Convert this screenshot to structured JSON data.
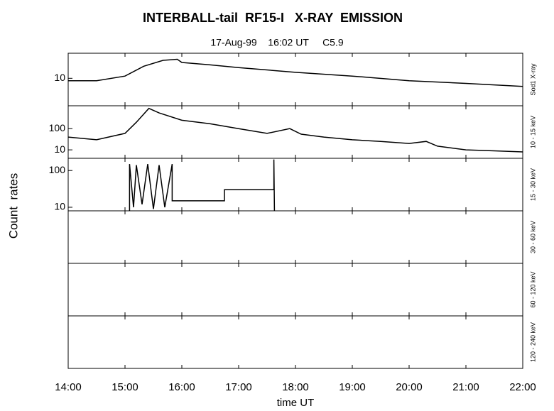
{
  "figure": {
    "title": "INTERBALL-tail  RF15-I   X-RAY  EMISSION",
    "subtitle": "17-Aug-99    16:02 UT     C5.9",
    "ylabel": "Count  rates",
    "xlabel": "time UT",
    "xlim": [
      14,
      22
    ],
    "xticks": [
      {
        "value": 14,
        "label": "14:00"
      },
      {
        "value": 15,
        "label": "15:00"
      },
      {
        "value": 16,
        "label": "16:00"
      },
      {
        "value": 17,
        "label": "17:00"
      },
      {
        "value": 18,
        "label": "18:00"
      },
      {
        "value": 19,
        "label": "19:00"
      },
      {
        "value": 20,
        "label": "20:00"
      },
      {
        "value": 21,
        "label": "21:00"
      },
      {
        "value": 22,
        "label": "22:00"
      }
    ]
  },
  "chart_data": [
    {
      "type": "line",
      "label": "Sod1 X-ray",
      "log_scale": true,
      "ylim": [
        3,
        30
      ],
      "yticks": [
        10
      ],
      "color": "#000000",
      "x": [
        14,
        14.5,
        15,
        15.33,
        15.67,
        15.92,
        16,
        16.5,
        17,
        18,
        19,
        20,
        21,
        22
      ],
      "values": [
        9,
        9,
        11,
        17,
        22,
        23,
        20,
        18,
        16,
        13,
        11,
        9,
        8,
        7
      ]
    },
    {
      "type": "line",
      "label": "10 - 15 keV",
      "log_scale": true,
      "ylim": [
        4,
        1200
      ],
      "yticks": [
        10,
        100
      ],
      "color": "#000000",
      "x": [
        14,
        14.5,
        15,
        15.2,
        15.42,
        15.6,
        16,
        16.5,
        17,
        17.5,
        17.9,
        18.1,
        18.5,
        19,
        19.5,
        20,
        20.3,
        20.5,
        21,
        21.5,
        22
      ],
      "values": [
        40,
        30,
        60,
        200,
        900,
        550,
        250,
        170,
        100,
        60,
        100,
        55,
        40,
        30,
        25,
        20,
        25,
        15,
        10,
        9,
        8
      ]
    },
    {
      "type": "line",
      "label": "15 - 30 keV",
      "log_scale": true,
      "ylim": [
        8,
        215
      ],
      "yticks": [
        10,
        100
      ],
      "color": "#000000",
      "x": [
        15.08,
        15.08,
        15.15,
        15.2,
        15.3,
        15.4,
        15.5,
        15.6,
        15.7,
        15.83,
        15.83,
        16.75,
        16.75,
        17.62,
        17.62,
        17.63
      ],
      "values": [
        8,
        150,
        10,
        140,
        12,
        150,
        9,
        140,
        10,
        150,
        15,
        15,
        30,
        30,
        200,
        8
      ]
    },
    {
      "type": "line",
      "label": "30 - 60 keV"
    },
    {
      "type": "line",
      "label": "60 - 120 keV"
    },
    {
      "type": "line",
      "label": "120 - 240 keV"
    }
  ]
}
